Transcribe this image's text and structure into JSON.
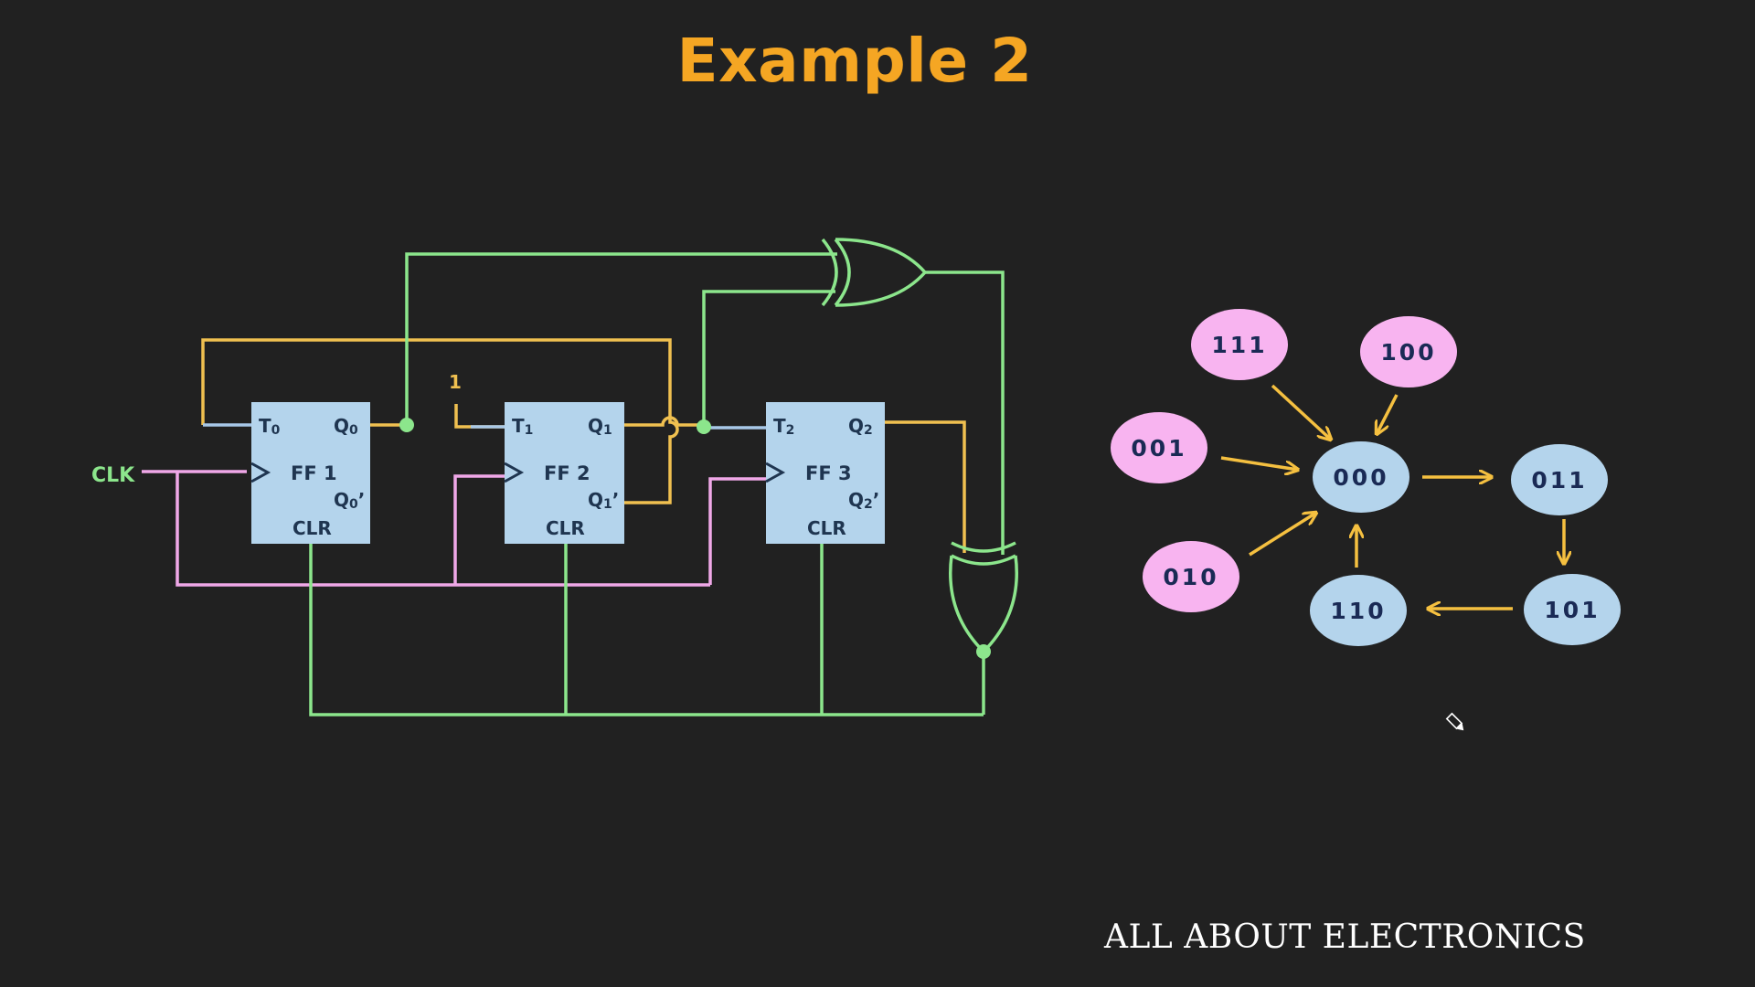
{
  "title": "Example 2",
  "watermark": "ALL ABOUT ELECTRONICS",
  "colors": {
    "background": "#212121",
    "title": "#f5a623",
    "wire_green": "#8ce68c",
    "wire_orange": "#f0c050",
    "wire_pink": "#f0a8e8",
    "wire_blue": "#a8c8e8",
    "flipflop_fill": "#b4d4ec",
    "state_valid": "#b4d4ec",
    "state_unused": "#f8b4f0",
    "arrow": "#f5c040"
  },
  "circuit": {
    "clk_label": "CLK",
    "constant_label": "1",
    "flip_flops": [
      {
        "name": "FF 1",
        "t": "T",
        "t_sub": "0",
        "q": "Q",
        "q_sub": "0",
        "qbar": "Q",
        "qbar_sub": "0",
        "qbar_mark": "’",
        "clr": "CLR"
      },
      {
        "name": "FF 2",
        "t": "T",
        "t_sub": "1",
        "q": "Q",
        "q_sub": "1",
        "qbar": "Q",
        "qbar_sub": "1",
        "qbar_mark": "’",
        "clr": "CLR"
      },
      {
        "name": "FF 3",
        "t": "T",
        "t_sub": "2",
        "q": "Q",
        "q_sub": "2",
        "qbar": "Q",
        "qbar_sub": "2",
        "qbar_mark": "’",
        "clr": "CLR"
      }
    ],
    "gates": [
      "xor-gate",
      "xnor-gate"
    ]
  },
  "state_diagram": {
    "states": [
      {
        "id": "000",
        "label": "000",
        "kind": "valid"
      },
      {
        "id": "011",
        "label": "011",
        "kind": "valid"
      },
      {
        "id": "101",
        "label": "101",
        "kind": "valid"
      },
      {
        "id": "110",
        "label": "110",
        "kind": "valid"
      },
      {
        "id": "111",
        "label": "111",
        "kind": "unused"
      },
      {
        "id": "100",
        "label": "100",
        "kind": "unused"
      },
      {
        "id": "001",
        "label": "001",
        "kind": "unused"
      },
      {
        "id": "010",
        "label": "010",
        "kind": "unused"
      }
    ],
    "transitions": [
      {
        "from": "000",
        "to": "011"
      },
      {
        "from": "011",
        "to": "101"
      },
      {
        "from": "101",
        "to": "110"
      },
      {
        "from": "110",
        "to": "000"
      },
      {
        "from": "111",
        "to": "000"
      },
      {
        "from": "100",
        "to": "000"
      },
      {
        "from": "001",
        "to": "000"
      },
      {
        "from": "010",
        "to": "000"
      }
    ]
  }
}
